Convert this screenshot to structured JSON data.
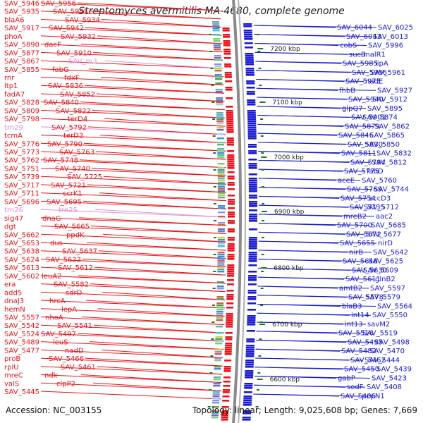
{
  "title": "Streptomyces avermitilis MA-4680, complete genome",
  "accession": "Accession: NC_003155",
  "summary": "Topology: linear; Length: 9,025,608 bp; Genes: 7,669",
  "colors": {
    "forward": "#e8141c",
    "reverse": "#1a1ad0",
    "rna": "#e090d8",
    "backbone": "#8a8a8a",
    "tick": "#1a7a1a"
  },
  "ruler": [
    {
      "label": "7200 kbp"
    },
    {
      "label": "7100 kbp"
    },
    {
      "label": "7000 kbp"
    },
    {
      "label": "6900 kbp"
    },
    {
      "label": "6800 kbp"
    },
    {
      "label": "6700 kbp"
    },
    {
      "label": "6600 kbp"
    }
  ],
  "left_labels": [
    {
      "text": "SAV_5946",
      "c": "f"
    },
    {
      "text": "SAV_5956",
      "c": "f"
    },
    {
      "text": "SAV_5935",
      "c": "f"
    },
    {
      "text": "SAV_5945",
      "c": "f"
    },
    {
      "text": "blaA6",
      "c": "f"
    },
    {
      "text": "SAV_5934",
      "c": "f"
    },
    {
      "text": "SAV_5917",
      "c": "f"
    },
    {
      "text": "SAV_5942",
      "c": "f"
    },
    {
      "text": "phoA",
      "c": "f"
    },
    {
      "text": "SAV_5932",
      "c": "f"
    },
    {
      "text": "SAV_5890",
      "c": "f"
    },
    {
      "text": "dacF",
      "c": "f"
    },
    {
      "text": "SAV_5877",
      "c": "f"
    },
    {
      "text": "SAV_5910",
      "c": "f"
    },
    {
      "text": "SAV_5867",
      "c": "f"
    },
    {
      "text": "SAV_m3",
      "c": "r"
    },
    {
      "text": "SAV_5855",
      "c": "f"
    },
    {
      "text": "fabG",
      "c": "f"
    },
    {
      "text": "rnr",
      "c": "f"
    },
    {
      "text": "fdxF",
      "c": "f"
    },
    {
      "text": "ltp1",
      "c": "f"
    },
    {
      "text": "SAV_5836",
      "c": "f"
    },
    {
      "text": "fadA7",
      "c": "f"
    },
    {
      "text": "SAV_5852",
      "c": "f"
    },
    {
      "text": "SAV_5828",
      "c": "f"
    },
    {
      "text": "SAV_5840",
      "c": "f"
    },
    {
      "text": "SAV_5809",
      "c": "f"
    },
    {
      "text": "SAV_5822",
      "c": "f"
    },
    {
      "text": "SAV_5798",
      "c": "f"
    },
    {
      "text": "terD4",
      "c": "f"
    },
    {
      "text": "trn29",
      "c": "r"
    },
    {
      "text": "SAV_5792",
      "c": "f"
    },
    {
      "text": "tcmA",
      "c": "f"
    },
    {
      "text": "terD3",
      "c": "f"
    },
    {
      "text": "SAV_5776",
      "c": "f"
    },
    {
      "text": "SAV_5790",
      "c": "f"
    },
    {
      "text": "SAV_5773",
      "c": "f"
    },
    {
      "text": "SAV_5763",
      "c": "f"
    },
    {
      "text": "SAV_5762",
      "c": "f"
    },
    {
      "text": "SAV_5748",
      "c": "f"
    },
    {
      "text": "SAV_5751",
      "c": "f"
    },
    {
      "text": "SAV_5740",
      "c": "f"
    },
    {
      "text": "SAV_5739",
      "c": "f"
    },
    {
      "text": "SAV_5725",
      "c": "f"
    },
    {
      "text": "SAV_5717",
      "c": "f"
    },
    {
      "text": "SAV_5721",
      "c": "f"
    },
    {
      "text": "SAV_5711",
      "c": "f"
    },
    {
      "text": "scrK1",
      "c": "f"
    },
    {
      "text": "SAV_5696",
      "c": "f"
    },
    {
      "text": "SAV_5695",
      "c": "f"
    },
    {
      "text": "trn26",
      "c": "r"
    },
    {
      "text": "trn25",
      "c": "r"
    },
    {
      "text": "sig47",
      "c": "f"
    },
    {
      "text": "dnaG",
      "c": "f"
    },
    {
      "text": "dgt",
      "c": "f"
    },
    {
      "text": "SAV_5665",
      "c": "f"
    },
    {
      "text": "SAV_5662",
      "c": "f"
    },
    {
      "text": "ppdK",
      "c": "f"
    },
    {
      "text": "SAV_5653",
      "c": "f"
    },
    {
      "text": "dus",
      "c": "f"
    },
    {
      "text": "SAV_5638",
      "c": "f"
    },
    {
      "text": "SAV_5637",
      "c": "f"
    },
    {
      "text": "SAV_5624",
      "c": "f"
    },
    {
      "text": "SAV_5623",
      "c": "f"
    },
    {
      "text": "SAV_5613",
      "c": "f"
    },
    {
      "text": "SAV_5612",
      "c": "f"
    },
    {
      "text": "SAV_5602",
      "c": "f"
    },
    {
      "text": "leuA2",
      "c": "f"
    },
    {
      "text": "era",
      "c": "f"
    },
    {
      "text": "SAV_5582",
      "c": "f"
    },
    {
      "text": "add5",
      "c": "f"
    },
    {
      "text": "sdrD",
      "c": "f"
    },
    {
      "text": "dnaJ3",
      "c": "f"
    },
    {
      "text": "hrcA",
      "c": "f"
    },
    {
      "text": "hemN",
      "c": "f"
    },
    {
      "text": "lepA",
      "c": "f"
    },
    {
      "text": "SAV_5557",
      "c": "f"
    },
    {
      "text": "nhoA",
      "c": "f"
    },
    {
      "text": "SAV_5542",
      "c": "f"
    },
    {
      "text": "SAV_5541",
      "c": "f"
    },
    {
      "text": "SAV_5524",
      "c": "f"
    },
    {
      "text": "SAV_5497",
      "c": "f"
    },
    {
      "text": "SAV_5489",
      "c": "f"
    },
    {
      "text": "leuS",
      "c": "f"
    },
    {
      "text": "SAV_5477",
      "c": "f"
    },
    {
      "text": "nadD",
      "c": "f"
    },
    {
      "text": "proB",
      "c": "f"
    },
    {
      "text": "SAV_5466",
      "c": "f"
    },
    {
      "text": "rplU",
      "c": "f"
    },
    {
      "text": "SAV_5461",
      "c": "f"
    },
    {
      "text": "mreC",
      "c": "f"
    },
    {
      "text": "ndk",
      "c": "f"
    },
    {
      "text": "valS",
      "c": "f"
    },
    {
      "text": "clpP2",
      "c": "f"
    },
    {
      "text": "SAV_5445",
      "c": "f"
    }
  ],
  "right_labels": [
    {
      "text": "SAV_6044"
    },
    {
      "text": "SAV_6025"
    },
    {
      "text": "SAV_6043"
    },
    {
      "text": "SAV_6013"
    },
    {
      "text": "cobS"
    },
    {
      "text": "SAV_5996"
    },
    {
      "text": "sucB"
    },
    {
      "text": "malR1"
    },
    {
      "text": "SAV_5985"
    },
    {
      "text": "lipA"
    },
    {
      "text": "SAV_5986"
    },
    {
      "text": "SAV_5961"
    },
    {
      "text": "SAV_5973"
    },
    {
      "text": "nadE"
    },
    {
      "text": "fhbB"
    },
    {
      "text": "SAV_5927"
    },
    {
      "text": "SAV_5940"
    },
    {
      "text": "SAV_5912"
    },
    {
      "text": "glpQ7"
    },
    {
      "text": "SAV_5895"
    },
    {
      "text": "SAV_5901"
    },
    {
      "text": "SAV_5874"
    },
    {
      "text": "SAV_5879"
    },
    {
      "text": "SAV_5862"
    },
    {
      "text": "SAV_5846"
    },
    {
      "text": "SAV_5865"
    },
    {
      "text": "SAV_5830"
    },
    {
      "text": "SAV_5850"
    },
    {
      "text": "SAV_5811"
    },
    {
      "text": "SAV_5832"
    },
    {
      "text": "SAV_5794"
    },
    {
      "text": "SAV_5812"
    },
    {
      "text": "SAV_5775"
    },
    {
      "text": "fabD"
    },
    {
      "text": "aceE"
    },
    {
      "text": "SAV_5760"
    },
    {
      "text": "SAV_5769"
    },
    {
      "text": "SAV_5744"
    },
    {
      "text": "SAV_5754"
    },
    {
      "text": "accD3"
    },
    {
      "text": "SAV_5735"
    },
    {
      "text": "SAV_5712"
    },
    {
      "text": "mreB2"
    },
    {
      "text": "aac2"
    },
    {
      "text": "SAV_5700"
    },
    {
      "text": "SAV_5685"
    },
    {
      "text": "SAV_5672"
    },
    {
      "text": "SAV_5677"
    },
    {
      "text": "SAV_5655"
    },
    {
      "text": "nirD"
    },
    {
      "text": "nirB"
    },
    {
      "text": "SAV_5642"
    },
    {
      "text": "SAV_5648"
    },
    {
      "text": "SAV_5625"
    },
    {
      "text": "SAV_5630"
    },
    {
      "text": "SAV_5609"
    },
    {
      "text": "SAV_5611"
    },
    {
      "text": "glnB2"
    },
    {
      "text": "amtB2"
    },
    {
      "text": "SAV_5597"
    },
    {
      "text": "SAV_5578"
    },
    {
      "text": "SAV_5579"
    },
    {
      "text": "blaB3"
    },
    {
      "text": "SAV_5564"
    },
    {
      "text": "int14"
    },
    {
      "text": "SAV_5550"
    },
    {
      "text": "int13"
    },
    {
      "text": "savM2"
    },
    {
      "text": "SAV_5516"
    },
    {
      "text": "SAV_5519"
    },
    {
      "text": "SAV_5495"
    },
    {
      "text": "SAV_5498"
    },
    {
      "text": "SAV_5482"
    },
    {
      "text": "SAV_5470"
    },
    {
      "text": "SAV_5462"
    },
    {
      "text": "SAV_5444"
    },
    {
      "text": "SAV_5450"
    },
    {
      "text": "SAV_5439"
    },
    {
      "text": "gabP"
    },
    {
      "text": "SAV_5423"
    },
    {
      "text": "sodF"
    },
    {
      "text": "SAV_5408"
    },
    {
      "text": "SAV_5406"
    },
    {
      "text": "pepN1"
    }
  ]
}
